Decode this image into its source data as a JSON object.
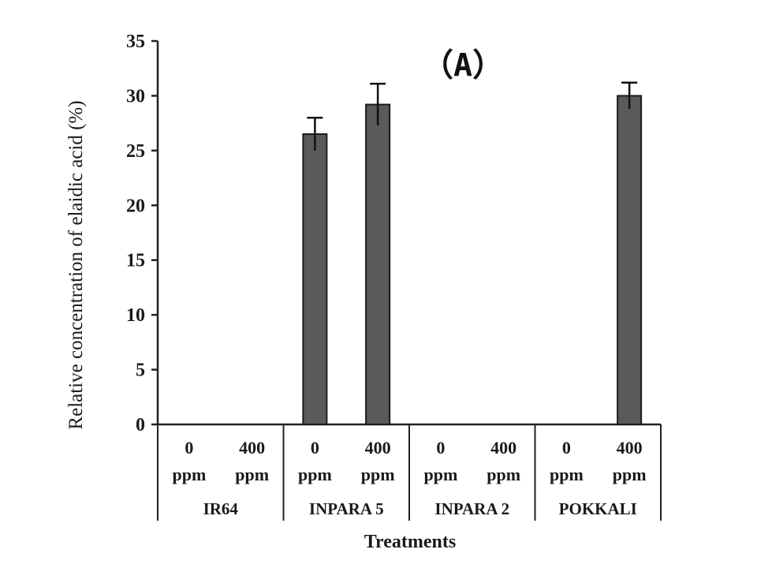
{
  "chart_data": {
    "type": "bar",
    "panel_label": "（A）",
    "ylabel": "Relative concentration of elaidic acid (%)",
    "xlabel": "Treatments",
    "ylim": [
      0,
      35
    ],
    "yticks": [
      0,
      5,
      10,
      15,
      20,
      25,
      30,
      35
    ],
    "grid": false,
    "groups": [
      "IR64",
      "INPARA 5",
      "INPARA 2",
      "POKKALI"
    ],
    "subcategories": [
      {
        "dose": "0",
        "unit": "ppm"
      },
      {
        "dose": "400",
        "unit": "ppm"
      }
    ],
    "values": [
      0,
      0,
      26.5,
      29.2,
      0,
      0,
      0,
      30.0
    ],
    "errors": [
      0,
      0,
      1.5,
      1.9,
      0,
      0,
      0,
      1.2
    ],
    "bar_color": "#5a5a5a"
  }
}
